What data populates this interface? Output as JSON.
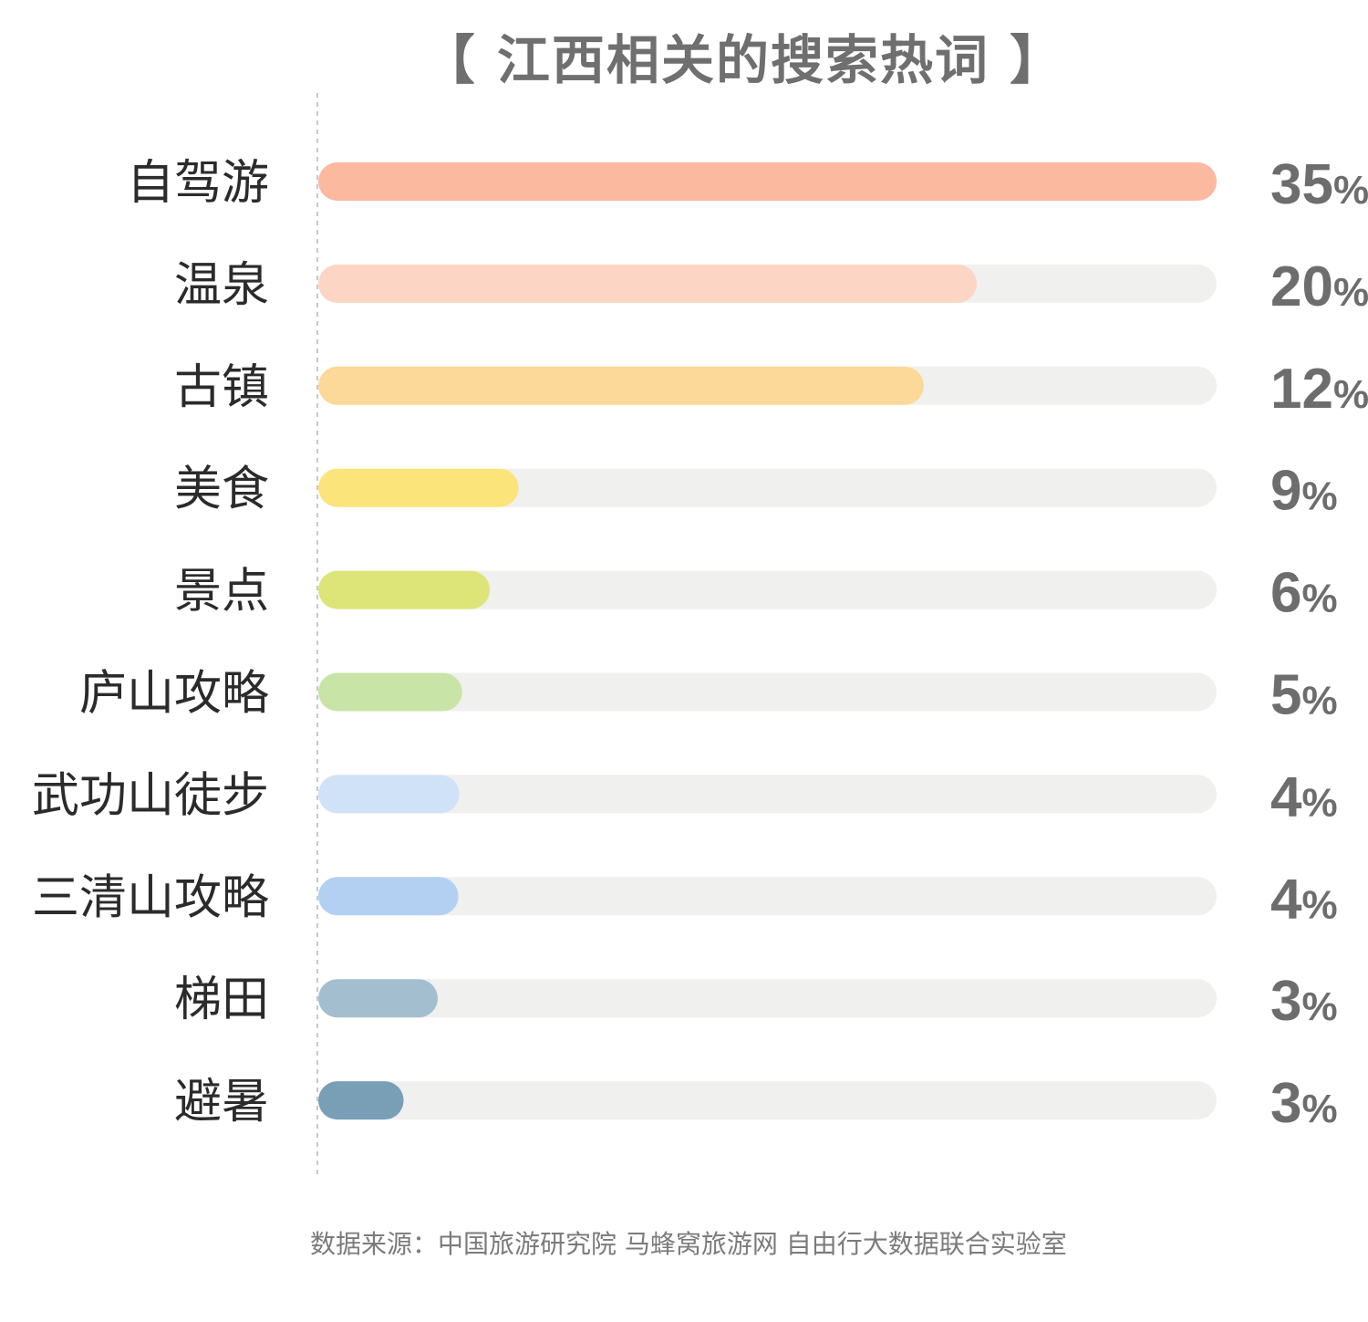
{
  "chart_data": {
    "type": "bar",
    "orientation": "horizontal",
    "title": "【 江西相关的搜索热词 】",
    "categories": [
      "自驾游",
      "温泉",
      "古镇",
      "美食",
      "景点",
      "庐山攻略",
      "武功山徒步",
      "三清山攻略",
      "梯田",
      "避暑"
    ],
    "values": [
      35,
      20,
      12,
      9,
      6,
      5,
      4,
      4,
      3,
      3
    ],
    "value_labels": [
      "35%",
      "20%",
      "12%",
      "9%",
      "6%",
      "5%",
      "4%",
      "4%",
      "3%",
      "3%"
    ],
    "bar_fill_fraction": [
      1.0,
      0.733,
      0.674,
      0.223,
      0.191,
      0.16,
      0.157,
      0.156,
      0.133,
      0.095
    ],
    "colors": [
      "#fbb9a0",
      "#fdd5c4",
      "#fcd998",
      "#fbe47a",
      "#dde579",
      "#c8e4a6",
      "#cfe2f8",
      "#b3d0f3",
      "#a3bfcf",
      "#789fb6"
    ],
    "track_color": "#f0f0ef",
    "xlabel": "",
    "ylabel": "",
    "grid": false,
    "legend": "none"
  },
  "footer": {
    "source": "数据来源：中国旅游研究院 马蜂窝旅游网 自由行大数据联合实验室"
  }
}
